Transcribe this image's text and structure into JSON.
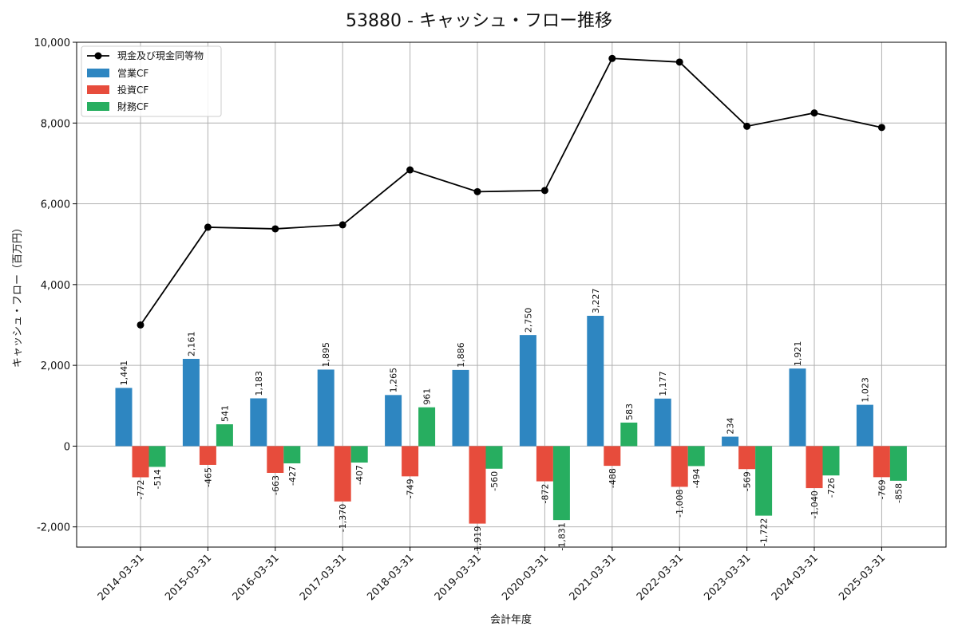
{
  "chart_data": {
    "type": "bar",
    "title": "53880 - キャッシュ・フロー推移",
    "xlabel": "会計年度",
    "ylabel": "キャッシュ・フロー（百万円）",
    "ylim": [
      -2500,
      10000
    ],
    "yticks": [
      -2000,
      0,
      2000,
      4000,
      6000,
      8000,
      10000
    ],
    "ytick_labels": [
      "-2,000",
      "0",
      "2,000",
      "4,000",
      "6,000",
      "8,000",
      "10,000"
    ],
    "grid": true,
    "legend_position": "top-left",
    "categories": [
      "2014-03-31",
      "2015-03-31",
      "2016-03-31",
      "2017-03-31",
      "2018-03-31",
      "2019-03-31",
      "2020-03-31",
      "2021-03-31",
      "2022-03-31",
      "2023-03-31",
      "2024-03-31",
      "2025-03-31"
    ],
    "series": [
      {
        "name": "営業CF",
        "color": "#2e86c1",
        "values": [
          1441,
          2161,
          1183,
          1895,
          1265,
          1886,
          2750,
          3227,
          1177,
          234,
          1921,
          1023
        ]
      },
      {
        "name": "投資CF",
        "color": "#e74c3c",
        "values": [
          -772,
          -465,
          -663,
          -1370,
          -749,
          -1919,
          -872,
          -488,
          -1008,
          -569,
          -1040,
          -769
        ]
      },
      {
        "name": "財務CF",
        "color": "#27ae60",
        "values": [
          -514,
          541,
          -427,
          -407,
          961,
          -560,
          -1831,
          583,
          -494,
          -1722,
          -726,
          -858
        ]
      }
    ],
    "line_series": {
      "name": "現金及び現金同等物",
      "color": "#000000",
      "values": [
        3000,
        5420,
        5380,
        5480,
        6840,
        6300,
        6330,
        9600,
        9510,
        7920,
        8250,
        7890
      ]
    }
  }
}
